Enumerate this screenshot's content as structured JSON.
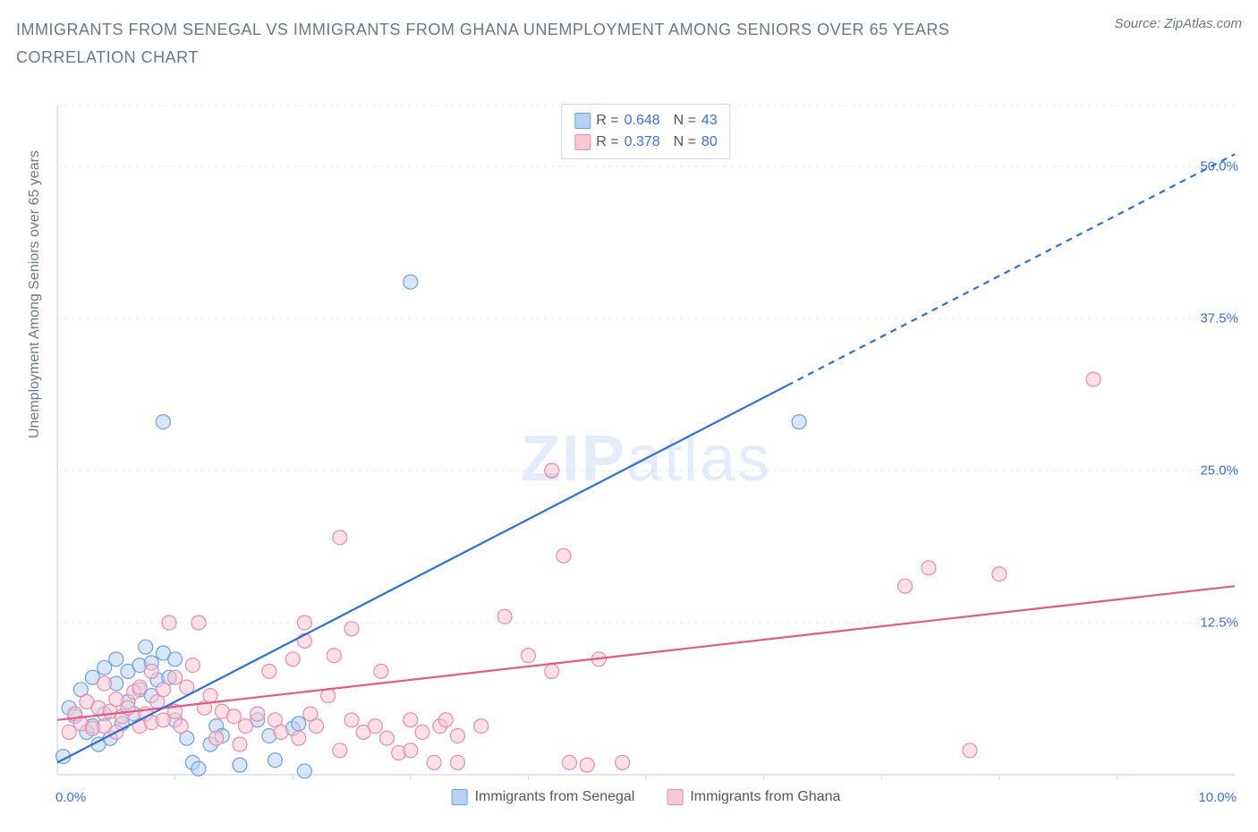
{
  "title": "IMMIGRANTS FROM SENEGAL VS IMMIGRANTS FROM GHANA UNEMPLOYMENT AMONG SENIORS OVER 65 YEARS CORRELATION CHART",
  "source_label": "Source: ZipAtlas.com",
  "y_axis_label": "Unemployment Among Seniors over 65 years",
  "watermark": {
    "bold": "ZIP",
    "rest": "atlas"
  },
  "chart": {
    "type": "scatter",
    "xlim": [
      0.0,
      10.0
    ],
    "ylim": [
      0.0,
      55.0
    ],
    "x_ticks": [
      0.0,
      10.0
    ],
    "x_tick_labels": [
      "0.0%",
      "10.0%"
    ],
    "x_minor_ticks": [
      1.0,
      2.0,
      3.0,
      4.0,
      5.0,
      6.0,
      7.0,
      8.0,
      9.0
    ],
    "y_ticks": [
      12.5,
      25.0,
      37.5,
      50.0
    ],
    "y_tick_labels": [
      "12.5%",
      "25.0%",
      "37.5%",
      "50.0%"
    ],
    "grid_color": "#e5e9f0",
    "axis_color": "#d0d7e2",
    "background": "#ffffff",
    "marker_radius": 8,
    "marker_stroke_width": 1.2,
    "line_width": 2.2,
    "tick_fontsize": 15,
    "series": [
      {
        "name": "Immigrants from Senegal",
        "color_fill": "#b8d1f0",
        "color_stroke": "#6aa0e0",
        "line_color": "#2e6fd8",
        "r": 0.648,
        "n": 43,
        "regression": {
          "x1": 0.0,
          "y1": 1.0,
          "x2": 6.2,
          "y2": 32.0,
          "x3": 10.0,
          "y3": 51.0
        },
        "points": [
          [
            0.05,
            1.5
          ],
          [
            0.1,
            5.5
          ],
          [
            0.15,
            4.8
          ],
          [
            0.2,
            7.0
          ],
          [
            0.25,
            3.5
          ],
          [
            0.3,
            4.0
          ],
          [
            0.3,
            8.0
          ],
          [
            0.35,
            2.5
          ],
          [
            0.4,
            5.0
          ],
          [
            0.4,
            8.8
          ],
          [
            0.45,
            3.0
          ],
          [
            0.5,
            7.5
          ],
          [
            0.5,
            9.5
          ],
          [
            0.55,
            4.2
          ],
          [
            0.6,
            6.0
          ],
          [
            0.6,
            8.5
          ],
          [
            0.65,
            5.0
          ],
          [
            0.7,
            7.0
          ],
          [
            0.7,
            9.0
          ],
          [
            0.75,
            10.5
          ],
          [
            0.8,
            6.5
          ],
          [
            0.8,
            9.2
          ],
          [
            0.85,
            7.8
          ],
          [
            0.9,
            10.0
          ],
          [
            0.9,
            29.0
          ],
          [
            0.95,
            8.0
          ],
          [
            1.0,
            4.5
          ],
          [
            1.0,
            9.5
          ],
          [
            1.1,
            3.0
          ],
          [
            1.15,
            1.0
          ],
          [
            1.2,
            0.5
          ],
          [
            1.3,
            2.5
          ],
          [
            1.35,
            4.0
          ],
          [
            1.4,
            3.2
          ],
          [
            1.55,
            0.8
          ],
          [
            1.7,
            4.5
          ],
          [
            1.8,
            3.2
          ],
          [
            1.85,
            1.2
          ],
          [
            2.0,
            3.8
          ],
          [
            2.05,
            4.2
          ],
          [
            2.1,
            0.3
          ],
          [
            3.0,
            40.5
          ],
          [
            6.3,
            29.0
          ]
        ]
      },
      {
        "name": "Immigrants from Ghana",
        "color_fill": "#f7c9d4",
        "color_stroke": "#e88ba5",
        "line_color": "#e05a87",
        "r": 0.378,
        "n": 80,
        "regression": {
          "x1": 0.0,
          "y1": 4.5,
          "x2": 10.0,
          "y2": 15.5
        },
        "points": [
          [
            0.1,
            3.5
          ],
          [
            0.15,
            5.0
          ],
          [
            0.2,
            4.2
          ],
          [
            0.25,
            6.0
          ],
          [
            0.3,
            3.8
          ],
          [
            0.35,
            5.5
          ],
          [
            0.4,
            4.0
          ],
          [
            0.4,
            7.5
          ],
          [
            0.45,
            5.2
          ],
          [
            0.5,
            3.5
          ],
          [
            0.5,
            6.2
          ],
          [
            0.55,
            4.8
          ],
          [
            0.6,
            5.5
          ],
          [
            0.65,
            6.8
          ],
          [
            0.7,
            4.0
          ],
          [
            0.7,
            7.2
          ],
          [
            0.75,
            5.0
          ],
          [
            0.8,
            4.3
          ],
          [
            0.8,
            8.5
          ],
          [
            0.85,
            6.0
          ],
          [
            0.9,
            4.5
          ],
          [
            0.9,
            7.0
          ],
          [
            0.95,
            12.5
          ],
          [
            1.0,
            5.2
          ],
          [
            1.0,
            8.0
          ],
          [
            1.05,
            4.0
          ],
          [
            1.1,
            7.2
          ],
          [
            1.15,
            9.0
          ],
          [
            1.2,
            12.5
          ],
          [
            1.25,
            5.5
          ],
          [
            1.3,
            6.5
          ],
          [
            1.35,
            3.0
          ],
          [
            1.4,
            5.2
          ],
          [
            1.5,
            4.8
          ],
          [
            1.55,
            2.5
          ],
          [
            1.6,
            4.0
          ],
          [
            1.7,
            5.0
          ],
          [
            1.8,
            8.5
          ],
          [
            1.85,
            4.5
          ],
          [
            1.9,
            3.5
          ],
          [
            2.0,
            9.5
          ],
          [
            2.05,
            3.0
          ],
          [
            2.1,
            11.0
          ],
          [
            2.1,
            12.5
          ],
          [
            2.15,
            5.0
          ],
          [
            2.2,
            4.0
          ],
          [
            2.3,
            6.5
          ],
          [
            2.35,
            9.8
          ],
          [
            2.4,
            19.5
          ],
          [
            2.4,
            2.0
          ],
          [
            2.5,
            4.5
          ],
          [
            2.5,
            12.0
          ],
          [
            2.6,
            3.5
          ],
          [
            2.7,
            4.0
          ],
          [
            2.75,
            8.5
          ],
          [
            2.8,
            3.0
          ],
          [
            2.9,
            1.8
          ],
          [
            3.0,
            4.5
          ],
          [
            3.0,
            2.0
          ],
          [
            3.1,
            3.5
          ],
          [
            3.2,
            1.0
          ],
          [
            3.25,
            4.0
          ],
          [
            3.3,
            4.5
          ],
          [
            3.4,
            3.2
          ],
          [
            3.4,
            1.0
          ],
          [
            3.6,
            4.0
          ],
          [
            3.8,
            13.0
          ],
          [
            4.0,
            9.8
          ],
          [
            4.2,
            25.0
          ],
          [
            4.2,
            8.5
          ],
          [
            4.3,
            18.0
          ],
          [
            4.35,
            1.0
          ],
          [
            4.5,
            0.8
          ],
          [
            4.6,
            9.5
          ],
          [
            4.8,
            1.0
          ],
          [
            7.2,
            15.5
          ],
          [
            7.4,
            17.0
          ],
          [
            7.75,
            2.0
          ],
          [
            8.0,
            16.5
          ],
          [
            8.8,
            32.5
          ]
        ]
      }
    ]
  },
  "legend_bottom": [
    {
      "label": "Immigrants from Senegal",
      "fill": "#b8d1f0",
      "stroke": "#6aa0e0"
    },
    {
      "label": "Immigrants from Ghana",
      "fill": "#f7c9d4",
      "stroke": "#e88ba5"
    }
  ]
}
